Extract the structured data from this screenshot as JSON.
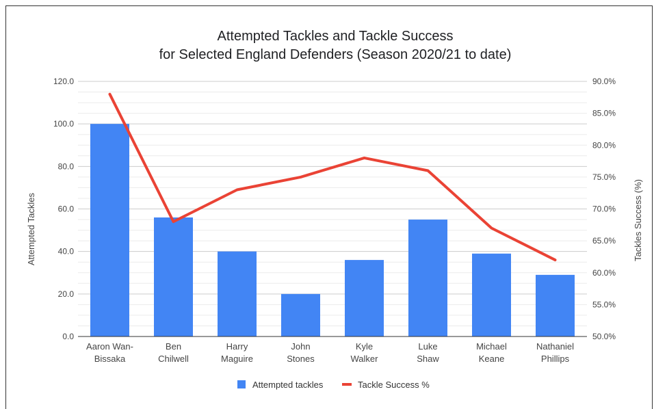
{
  "chart_data": {
    "type": "bar",
    "title": "Attempted Tackles and Tackle Success",
    "subtitle": "for Selected England Defenders (Season 2020/21 to date)",
    "categories": [
      [
        "Aaron Wan-",
        "Bissaka"
      ],
      [
        "Ben",
        "Chilwell"
      ],
      [
        "Harry",
        "Maguire"
      ],
      [
        "John",
        "Stones"
      ],
      [
        "Kyle",
        "Walker"
      ],
      [
        "Luke",
        "Shaw"
      ],
      [
        "Michael",
        "Keane"
      ],
      [
        "Nathaniel",
        "Phillips"
      ]
    ],
    "ylabel": "Attempted Tackles",
    "y2label": "Tackles Success (%)",
    "ylim": [
      0,
      120
    ],
    "y_ticks": [
      "0.0",
      "20.0",
      "40.0",
      "60.0",
      "80.0",
      "100.0",
      "120.0"
    ],
    "y2lim": [
      50,
      90
    ],
    "y2_ticks": [
      "50.0%",
      "55.0%",
      "60.0%",
      "65.0%",
      "70.0%",
      "75.0%",
      "80.0%",
      "85.0%",
      "90.0%"
    ],
    "grid": true,
    "legend_position": "bottom",
    "series": [
      {
        "name": "Attempted tackles",
        "kind": "bar",
        "axis": "left",
        "color": "#4285f4",
        "values": [
          100,
          56,
          40,
          20,
          36,
          55,
          39,
          29
        ]
      },
      {
        "name": "Tackle Success %",
        "kind": "line",
        "axis": "right",
        "color": "#ea4335",
        "values": [
          88,
          68,
          73,
          75,
          78,
          76,
          67,
          62
        ]
      }
    ]
  }
}
